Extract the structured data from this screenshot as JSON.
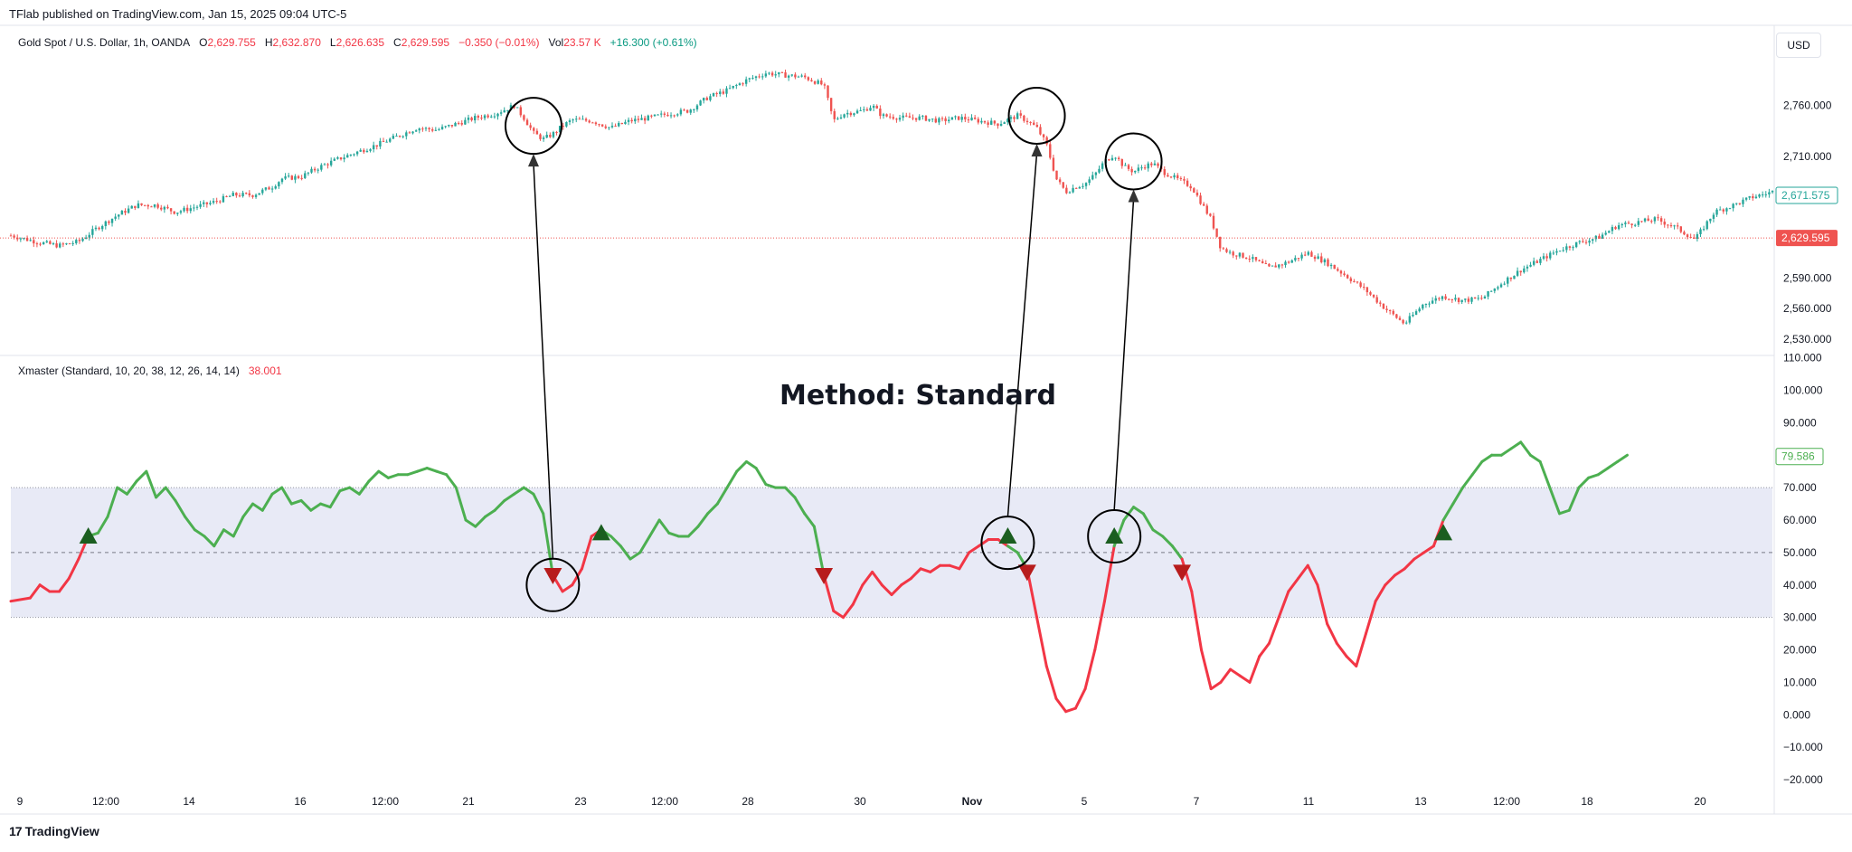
{
  "header": {
    "published": "TFlab published on TradingView.com, Jan 15, 2025 09:04 UTC-5"
  },
  "price_legend": {
    "symbol": "Gold Spot / U.S. Dollar, 1h, OANDA",
    "o_label": "O",
    "o_value": "2,629.755",
    "h_label": "H",
    "h_value": "2,632.870",
    "l_label": "L",
    "l_value": "2,626.635",
    "c_label": "C",
    "c_value": "2,629.595",
    "change": "−0.350 (−0.01%)",
    "vol_label": "Vol",
    "vol_value": "23.57 K",
    "vol_change": "+16.300 (+0.61%)"
  },
  "indicator_legend": {
    "name": "Xmaster (Standard, 10, 20, 38, 12, 26, 14, 14)",
    "value": "38.001"
  },
  "currency_button": "USD",
  "annotation": "Method: Standard",
  "footer": {
    "brand": "TradingView",
    "logo_glyph": "17"
  },
  "colors": {
    "up": "#26a69a",
    "down": "#ef5350",
    "osc_green": "#4caf50",
    "osc_red": "#f23645",
    "band": "#e8eaf6",
    "arrow_up": "#1b5e20",
    "arrow_down": "#b71c1c"
  },
  "chart_data": [
    {
      "type": "line",
      "series_kind": "candlestick",
      "y_ticks": [
        "2,760.000",
        "2,710.000",
        "2,590.000",
        "2,560.000",
        "2,530.000"
      ],
      "y_tick_values": [
        2760,
        2710,
        2590,
        2560,
        2530
      ],
      "ylim": [
        2521,
        2815
      ],
      "last_price_tag": "2,671.575",
      "current_price_tag": "2,629.595",
      "current_price": 2629.595,
      "last_price": 2671.575,
      "x_ticks": [
        "9",
        "12:00",
        "14",
        "16",
        "12:00",
        "21",
        "23",
        "12:00",
        "28",
        "30",
        "Nov",
        "5",
        "7",
        "11",
        "13",
        "12:00",
        "18",
        "20"
      ],
      "bold_ticks": [
        "Nov"
      ],
      "price_path": [
        [
          0,
          2632
        ],
        [
          3,
          2625
        ],
        [
          5,
          2622
        ],
        [
          7,
          2626
        ],
        [
          9,
          2640
        ],
        [
          11,
          2652
        ],
        [
          13,
          2662
        ],
        [
          15,
          2662
        ],
        [
          17,
          2655
        ],
        [
          19,
          2660
        ],
        [
          21,
          2665
        ],
        [
          23,
          2672
        ],
        [
          25,
          2672
        ],
        [
          27,
          2680
        ],
        [
          28,
          2688
        ],
        [
          30,
          2690
        ],
        [
          32,
          2700
        ],
        [
          34,
          2708
        ],
        [
          36,
          2715
        ],
        [
          38,
          2722
        ],
        [
          40,
          2730
        ],
        [
          42,
          2738
        ],
        [
          44,
          2736
        ],
        [
          46,
          2742
        ],
        [
          48,
          2748
        ],
        [
          50,
          2752
        ],
        [
          52,
          2760
        ],
        [
          53,
          2748
        ],
        [
          54,
          2733
        ],
        [
          55,
          2727
        ],
        [
          56,
          2732
        ],
        [
          57,
          2740
        ],
        [
          58,
          2746
        ],
        [
          60,
          2745
        ],
        [
          62,
          2738
        ],
        [
          64,
          2745
        ],
        [
          66,
          2748
        ],
        [
          68,
          2752
        ],
        [
          70,
          2755
        ],
        [
          72,
          2768
        ],
        [
          74,
          2775
        ],
        [
          76,
          2785
        ],
        [
          78,
          2792
        ],
        [
          80,
          2790
        ],
        [
          82,
          2788
        ],
        [
          84,
          2780
        ],
        [
          85,
          2745
        ],
        [
          86,
          2752
        ],
        [
          88,
          2755
        ],
        [
          89,
          2760
        ],
        [
          90,
          2750
        ],
        [
          92,
          2748
        ],
        [
          94,
          2748
        ],
        [
          96,
          2745
        ],
        [
          98,
          2748
        ],
        [
          100,
          2745
        ],
        [
          102,
          2742
        ],
        [
          104,
          2750
        ],
        [
          105,
          2745
        ],
        [
          106,
          2738
        ],
        [
          107,
          2722
        ],
        [
          108,
          2688
        ],
        [
          109,
          2675
        ],
        [
          110,
          2680
        ],
        [
          111,
          2683
        ],
        [
          112,
          2692
        ],
        [
          113,
          2705
        ],
        [
          114,
          2712
        ],
        [
          115,
          2700
        ],
        [
          116,
          2695
        ],
        [
          117,
          2700
        ],
        [
          118,
          2703
        ],
        [
          119,
          2695
        ],
        [
          120,
          2690
        ],
        [
          122,
          2680
        ],
        [
          124,
          2648
        ],
        [
          125,
          2620
        ],
        [
          126,
          2615
        ],
        [
          128,
          2610
        ],
        [
          130,
          2600
        ],
        [
          132,
          2606
        ],
        [
          134,
          2615
        ],
        [
          136,
          2605
        ],
        [
          138,
          2592
        ],
        [
          140,
          2578
        ],
        [
          142,
          2560
        ],
        [
          144,
          2545
        ],
        [
          146,
          2565
        ],
        [
          148,
          2572
        ],
        [
          150,
          2568
        ],
        [
          152,
          2570
        ],
        [
          154,
          2585
        ],
        [
          156,
          2598
        ],
        [
          158,
          2608
        ],
        [
          160,
          2618
        ],
        [
          162,
          2625
        ],
        [
          164,
          2630
        ],
        [
          166,
          2642
        ],
        [
          168,
          2645
        ],
        [
          170,
          2648
        ],
        [
          172,
          2640
        ],
        [
          174,
          2628
        ],
        [
          176,
          2655
        ],
        [
          178,
          2662
        ],
        [
          180,
          2670
        ],
        [
          182,
          2675
        ]
      ],
      "circles_at": [
        [
          54,
          2740
        ],
        [
          106,
          2750
        ],
        [
          116,
          2705
        ]
      ]
    },
    {
      "type": "line",
      "y_ticks": [
        "110.000",
        "100.000",
        "90.000",
        "80.000",
        "70.000",
        "60.000",
        "50.000",
        "40.000",
        "30.000",
        "20.000",
        "10.000",
        "0.000",
        "−10.000",
        "−20.000"
      ],
      "y_tick_values": [
        110,
        100,
        90,
        80,
        70,
        60,
        50,
        40,
        30,
        20,
        10,
        0,
        -10,
        -20
      ],
      "ylim": [
        -25,
        111
      ],
      "band": [
        30,
        70
      ],
      "midline": 50,
      "last_value_tag": "79.586",
      "last_value": 79.586,
      "osc_path": [
        [
          0,
          35
        ],
        [
          2,
          36
        ],
        [
          3,
          40
        ],
        [
          4,
          38
        ],
        [
          5,
          38
        ],
        [
          6,
          42
        ],
        [
          7,
          48
        ],
        [
          8,
          55
        ],
        [
          9,
          56
        ],
        [
          10,
          61
        ],
        [
          11,
          70
        ],
        [
          12,
          68
        ],
        [
          13,
          72
        ],
        [
          14,
          75
        ],
        [
          15,
          67
        ],
        [
          16,
          70
        ],
        [
          17,
          66
        ],
        [
          18,
          61
        ],
        [
          19,
          57
        ],
        [
          20,
          55
        ],
        [
          21,
          52
        ],
        [
          22,
          57
        ],
        [
          23,
          55
        ],
        [
          24,
          61
        ],
        [
          25,
          65
        ],
        [
          26,
          63
        ],
        [
          27,
          68
        ],
        [
          28,
          70
        ],
        [
          29,
          65
        ],
        [
          30,
          66
        ],
        [
          31,
          63
        ],
        [
          32,
          65
        ],
        [
          33,
          64
        ],
        [
          34,
          69
        ],
        [
          35,
          70
        ],
        [
          36,
          68
        ],
        [
          37,
          72
        ],
        [
          38,
          75
        ],
        [
          39,
          73
        ],
        [
          40,
          74
        ],
        [
          41,
          74
        ],
        [
          42,
          75
        ],
        [
          43,
          76
        ],
        [
          44,
          75
        ],
        [
          45,
          74
        ],
        [
          46,
          70
        ],
        [
          47,
          60
        ],
        [
          48,
          58
        ],
        [
          49,
          61
        ],
        [
          50,
          63
        ],
        [
          51,
          66
        ],
        [
          52,
          68
        ],
        [
          53,
          70
        ],
        [
          54,
          68
        ],
        [
          55,
          62
        ],
        [
          56,
          43
        ],
        [
          57,
          38
        ],
        [
          58,
          40
        ],
        [
          59,
          45
        ],
        [
          60,
          55
        ],
        [
          61,
          57
        ],
        [
          62,
          55
        ],
        [
          63,
          52
        ],
        [
          64,
          48
        ],
        [
          65,
          50
        ],
        [
          66,
          55
        ],
        [
          67,
          60
        ],
        [
          68,
          56
        ],
        [
          69,
          55
        ],
        [
          70,
          55
        ],
        [
          71,
          58
        ],
        [
          72,
          62
        ],
        [
          73,
          65
        ],
        [
          74,
          70
        ],
        [
          75,
          75
        ],
        [
          76,
          78
        ],
        [
          77,
          76
        ],
        [
          78,
          71
        ],
        [
          79,
          70
        ],
        [
          80,
          70
        ],
        [
          81,
          67
        ],
        [
          82,
          62
        ],
        [
          83,
          58
        ],
        [
          84,
          43
        ],
        [
          85,
          32
        ],
        [
          86,
          30
        ],
        [
          87,
          34
        ],
        [
          88,
          40
        ],
        [
          89,
          44
        ],
        [
          90,
          40
        ],
        [
          91,
          37
        ],
        [
          92,
          40
        ],
        [
          93,
          42
        ],
        [
          94,
          45
        ],
        [
          95,
          44
        ],
        [
          96,
          46
        ],
        [
          97,
          46
        ],
        [
          98,
          45
        ],
        [
          99,
          50
        ],
        [
          100,
          52
        ],
        [
          101,
          54
        ],
        [
          102,
          54
        ],
        [
          103,
          52
        ],
        [
          104,
          50
        ],
        [
          105,
          45
        ],
        [
          106,
          30
        ],
        [
          107,
          15
        ],
        [
          108,
          5
        ],
        [
          109,
          1
        ],
        [
          110,
          2
        ],
        [
          111,
          8
        ],
        [
          112,
          20
        ],
        [
          113,
          35
        ],
        [
          114,
          52
        ],
        [
          115,
          60
        ],
        [
          116,
          64
        ],
        [
          117,
          62
        ],
        [
          118,
          57
        ],
        [
          119,
          55
        ],
        [
          120,
          52
        ],
        [
          121,
          48
        ],
        [
          122,
          38
        ],
        [
          123,
          20
        ],
        [
          124,
          8
        ],
        [
          125,
          10
        ],
        [
          126,
          14
        ],
        [
          127,
          12
        ],
        [
          128,
          10
        ],
        [
          129,
          18
        ],
        [
          130,
          22
        ],
        [
          131,
          30
        ],
        [
          132,
          38
        ],
        [
          133,
          42
        ],
        [
          134,
          46
        ],
        [
          135,
          40
        ],
        [
          136,
          28
        ],
        [
          137,
          22
        ],
        [
          138,
          18
        ],
        [
          139,
          15
        ],
        [
          140,
          25
        ],
        [
          141,
          35
        ],
        [
          142,
          40
        ],
        [
          143,
          43
        ],
        [
          144,
          45
        ],
        [
          145,
          48
        ],
        [
          146,
          50
        ],
        [
          147,
          52
        ],
        [
          148,
          60
        ],
        [
          149,
          65
        ],
        [
          150,
          70
        ],
        [
          151,
          74
        ],
        [
          152,
          78
        ],
        [
          153,
          80
        ],
        [
          154,
          80
        ],
        [
          155,
          82
        ],
        [
          156,
          84
        ],
        [
          157,
          80
        ],
        [
          158,
          78
        ],
        [
          159,
          70
        ],
        [
          160,
          62
        ],
        [
          161,
          63
        ],
        [
          162,
          70
        ],
        [
          163,
          73
        ],
        [
          164,
          74
        ],
        [
          165,
          76
        ],
        [
          166,
          78
        ],
        [
          167,
          80
        ]
      ],
      "signals": [
        {
          "x": 8,
          "y": 55,
          "dir": "up"
        },
        {
          "x": 56,
          "y": 43,
          "dir": "down"
        },
        {
          "x": 61,
          "y": 56,
          "dir": "up"
        },
        {
          "x": 84,
          "y": 43,
          "dir": "down"
        },
        {
          "x": 103,
          "y": 55,
          "dir": "up"
        },
        {
          "x": 105,
          "y": 44,
          "dir": "down"
        },
        {
          "x": 114,
          "y": 55,
          "dir": "up"
        },
        {
          "x": 121,
          "y": 44,
          "dir": "down"
        },
        {
          "x": 148,
          "y": 56,
          "dir": "up"
        }
      ],
      "circles_at": [
        [
          56,
          40
        ],
        [
          103,
          53
        ],
        [
          114,
          55
        ]
      ]
    }
  ]
}
